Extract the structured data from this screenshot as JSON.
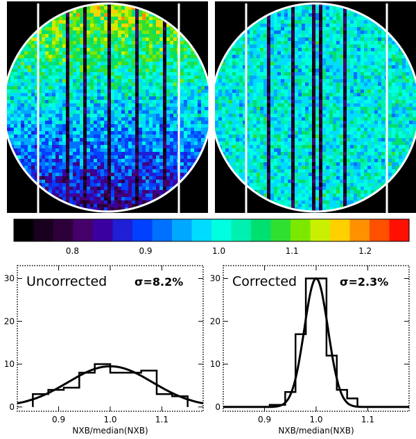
{
  "colorbar": {
    "colors": [
      "#000000",
      "#1a001f",
      "#2d003c",
      "#46006a",
      "#3a00a0",
      "#1f1fd6",
      "#0040ff",
      "#0070ff",
      "#00a8ff",
      "#00dcff",
      "#00ffe0",
      "#00f0b0",
      "#00e070",
      "#30e030",
      "#7ce800",
      "#c8f000",
      "#ffd000",
      "#ff9000",
      "#ff5000",
      "#ff1000"
    ],
    "range": [
      0.72,
      1.26
    ],
    "ticks": [
      "0.8",
      "0.9",
      "1.0",
      "1.1",
      "1.2"
    ]
  },
  "maps": [
    {
      "name": "uncorrected",
      "top_level": 1.13,
      "bottom_level": 0.83,
      "noise": 0.06
    },
    {
      "name": "corrected",
      "top_level": 1.0,
      "bottom_level": 1.0,
      "noise": 0.055
    }
  ],
  "chart_data": [
    {
      "type": "bar",
      "title": "Uncorrected",
      "sigma_label": "σ=8.2%",
      "xlabel": "NXB/median(NXB)",
      "ylabel": "",
      "xlim": [
        0.82,
        1.18
      ],
      "ylim": [
        -1,
        33
      ],
      "x_ticks": [
        "0.9",
        "1.0",
        "1.1"
      ],
      "y_ticks": [
        "0",
        "10",
        "20",
        "30"
      ],
      "bin_edges": [
        0.85,
        0.88,
        0.91,
        0.94,
        0.97,
        1.0,
        1.03,
        1.06,
        1.09,
        1.12,
        1.15
      ],
      "counts": [
        3,
        4,
        4.5,
        8,
        10,
        8,
        8,
        8.5,
        3,
        2.5
      ],
      "gaussian": {
        "mean": 1.0,
        "sigma": 0.082,
        "peak": 9.5
      }
    },
    {
      "type": "bar",
      "title": "Corrected",
      "sigma_label": "σ=2.3%",
      "xlabel": "NXB/median(NXB)",
      "ylabel": "",
      "xlim": [
        0.82,
        1.18
      ],
      "ylim": [
        -1,
        33
      ],
      "x_ticks": [
        "0.9",
        "1.0",
        "1.1"
      ],
      "y_ticks": [
        "0",
        "10",
        "20",
        "30"
      ],
      "bin_edges": [
        0.91,
        0.94,
        0.96,
        0.98,
        1.0,
        1.02,
        1.04,
        1.06,
        1.08
      ],
      "counts": [
        0.5,
        3.5,
        17,
        30,
        30,
        12,
        4,
        2
      ],
      "gaussian": {
        "mean": 1.0,
        "sigma": 0.023,
        "peak": 30
      }
    }
  ]
}
